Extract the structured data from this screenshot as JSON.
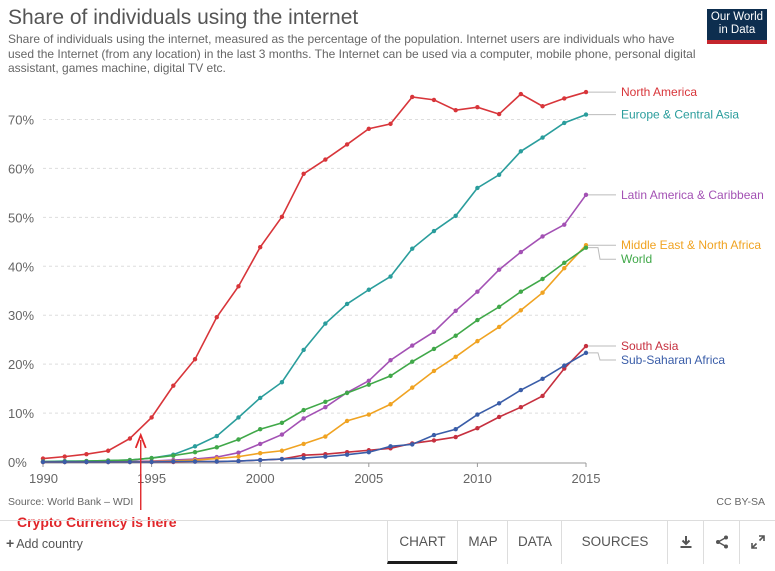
{
  "header": {
    "title": "Share of individuals using the internet",
    "subtitle": "Share of individuals using the internet, measured as the percentage of the population. Internet users are individuals who have used the Internet (from any location) in the last 3 months. The Internet can be used via a computer, mobile phone, personal digital assistant, games machine, digital TV etc.",
    "logo_line1": "Our World",
    "logo_line2": "in Data",
    "logo_color": "#0d2e4f",
    "logo_accent": "#c4252d"
  },
  "footer_notes": {
    "source": "Source: World Bank – WDI",
    "license": "CC BY-SA",
    "annotation": "Crypto Currency is here",
    "annotation_year": 1994.5,
    "annotation_color": "#e0262a"
  },
  "controls": {
    "add_country": "Add country",
    "tabs": [
      "CHART",
      "MAP",
      "DATA",
      "SOURCES"
    ],
    "active_tab": "CHART",
    "icons": [
      "download-icon",
      "share-icon",
      "expand-icon"
    ]
  },
  "chart_data": {
    "type": "line",
    "title": "Share of individuals using the internet",
    "x_ticks": [
      "1990",
      "1995",
      "2000",
      "2005",
      "2010",
      "2015"
    ],
    "y_ticks": [
      "0%",
      "10%",
      "20%",
      "30%",
      "40%",
      "50%",
      "60%",
      "70%"
    ],
    "xlim": [
      1990,
      2015
    ],
    "ylim": [
      0,
      75
    ],
    "grid": "horizontal dashed",
    "legend": "right, labels at line ends",
    "x": [
      1990,
      1991,
      1992,
      1993,
      1994,
      1995,
      1996,
      1997,
      1998,
      1999,
      2000,
      2001,
      2002,
      2003,
      2004,
      2005,
      2006,
      2007,
      2008,
      2009,
      2010,
      2011,
      2012,
      2013,
      2014,
      2015
    ],
    "series": [
      {
        "name": "North America",
        "color": "#d8353a",
        "values": [
          0.7,
          1.1,
          1.6,
          2.3,
          4.8,
          9.1,
          15.6,
          21.0,
          29.6,
          35.9,
          43.9,
          50.1,
          58.9,
          61.8,
          64.9,
          68.1,
          69.1,
          74.6,
          74.0,
          71.9,
          72.5,
          71.1,
          75.2,
          72.7,
          74.3,
          75.6
        ]
      },
      {
        "name": "Europe & Central Asia",
        "color": "#2a9d9c",
        "values": [
          0.1,
          0.2,
          0.2,
          0.3,
          0.4,
          0.8,
          1.5,
          3.2,
          5.3,
          9.1,
          13.1,
          16.3,
          22.9,
          28.3,
          32.3,
          35.2,
          37.9,
          43.6,
          47.2,
          50.3,
          56.0,
          58.7,
          63.5,
          66.3,
          69.3,
          71.0
        ]
      },
      {
        "name": "Latin America & Caribbean",
        "color": "#a351b4",
        "values": [
          0.0,
          0.0,
          0.0,
          0.0,
          0.1,
          0.2,
          0.4,
          0.6,
          1.0,
          1.9,
          3.7,
          5.6,
          8.9,
          11.2,
          14.2,
          16.6,
          20.8,
          23.8,
          26.6,
          30.9,
          34.8,
          39.3,
          42.9,
          46.1,
          48.5,
          54.6
        ]
      },
      {
        "name": "Middle East & North Africa",
        "color": "#f0a322",
        "values": [
          0.0,
          0.0,
          0.0,
          0.0,
          0.0,
          0.1,
          0.2,
          0.4,
          0.7,
          1.1,
          1.8,
          2.3,
          3.7,
          5.2,
          8.4,
          9.7,
          11.8,
          15.2,
          18.6,
          21.5,
          24.7,
          27.6,
          31.0,
          34.6,
          39.6,
          44.3
        ]
      },
      {
        "name": "World",
        "color": "#40a849",
        "values": [
          0.1,
          0.1,
          0.2,
          0.3,
          0.4,
          0.8,
          1.3,
          2.0,
          3.0,
          4.6,
          6.7,
          8.0,
          10.6,
          12.3,
          14.1,
          15.8,
          17.6,
          20.5,
          23.1,
          25.8,
          29.0,
          31.7,
          34.8,
          37.4,
          40.7,
          43.8
        ]
      },
      {
        "name": "South Asia",
        "color": "#c6303f",
        "values": [
          0.0,
          0.0,
          0.0,
          0.0,
          0.0,
          0.0,
          0.0,
          0.1,
          0.1,
          0.2,
          0.4,
          0.6,
          1.4,
          1.6,
          2.0,
          2.4,
          2.8,
          3.8,
          4.4,
          5.1,
          6.9,
          9.2,
          11.2,
          13.5,
          19.1,
          23.7
        ]
      },
      {
        "name": "Sub-Saharan Africa",
        "color": "#3a5da8",
        "values": [
          0.0,
          0.0,
          0.0,
          0.0,
          0.0,
          0.0,
          0.1,
          0.1,
          0.1,
          0.2,
          0.4,
          0.6,
          0.8,
          1.1,
          1.5,
          2.0,
          3.2,
          3.6,
          5.5,
          6.7,
          9.7,
          12.0,
          14.7,
          17.0,
          19.7,
          22.3
        ]
      }
    ]
  }
}
